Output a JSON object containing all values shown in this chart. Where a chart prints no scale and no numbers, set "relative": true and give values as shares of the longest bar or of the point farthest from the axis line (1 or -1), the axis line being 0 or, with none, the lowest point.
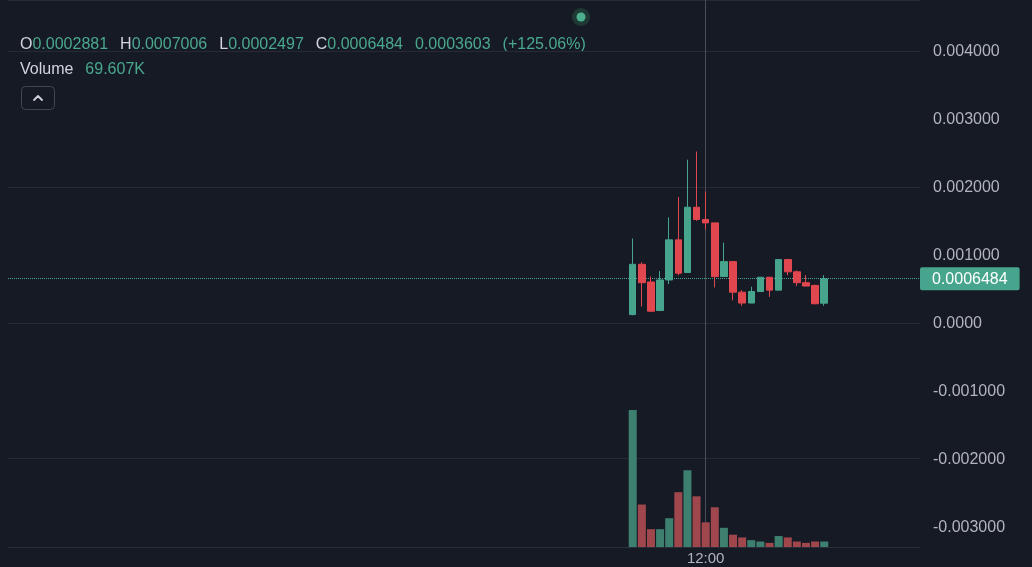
{
  "chart_data": [
    {
      "type": "candlestick",
      "categories": [
        null,
        null,
        null,
        null,
        null,
        null,
        null,
        null,
        null,
        null,
        null,
        null,
        null,
        null,
        null,
        null,
        null,
        null,
        null,
        null,
        null,
        null,
        null,
        null,
        null,
        null,
        null,
        null,
        null,
        null,
        null,
        null,
        null,
        null,
        null,
        null,
        null,
        null,
        null,
        null,
        null,
        null,
        null,
        null,
        null,
        null,
        null,
        null,
        null,
        null,
        null,
        null,
        null,
        null,
        null,
        null,
        null,
        null,
        null,
        null,
        null,
        null,
        null,
        null,
        null,
        null,
        null,
        null,
        null,
        null,
        null,
        null,
        null,
        null,
        null,
        null,
        "12:00",
        null,
        null,
        null,
        null,
        null,
        null,
        null,
        null,
        null,
        null,
        null,
        null,
        null,
        null,
        null,
        null,
        null,
        null,
        null,
        null,
        null,
        null,
        null
      ],
      "ylim": [
        -0.0033,
        0.00475
      ],
      "yticks": [
        {
          "value": -0.003,
          "label": "-0.003000"
        },
        {
          "value": -0.002,
          "label": "-0.002000"
        },
        {
          "value": -0.001,
          "label": "-0.001000"
        },
        {
          "value": 0,
          "label": "0.0000"
        },
        {
          "value": 0.001,
          "label": "0.001000"
        },
        {
          "value": 0.002,
          "label": "0.002000"
        },
        {
          "value": 0.003,
          "label": "0.003000"
        },
        {
          "value": 0.004,
          "label": "0.004000"
        }
      ],
      "ohlc": [
        null,
        null,
        null,
        null,
        null,
        null,
        null,
        null,
        null,
        null,
        null,
        null,
        null,
        null,
        null,
        null,
        null,
        null,
        null,
        null,
        null,
        null,
        null,
        null,
        null,
        null,
        null,
        null,
        null,
        null,
        null,
        null,
        null,
        null,
        null,
        null,
        null,
        null,
        null,
        null,
        null,
        null,
        null,
        null,
        null,
        null,
        null,
        null,
        null,
        null,
        null,
        null,
        null,
        null,
        null,
        null,
        null,
        null,
        null,
        null,
        null,
        null,
        null,
        null,
        null,
        null,
        null,
        null,
        [
          0.00012,
          0.00124,
          0.00011,
          0.00086
        ],
        [
          0.00086,
          0.00089,
          0.00024,
          0.00059
        ],
        [
          0.0006,
          0.00068,
          0.00016,
          0.00017
        ],
        [
          0.00018,
          0.00076,
          0.00018,
          0.00063
        ],
        [
          0.00063,
          0.00155,
          0.00057,
          0.00122
        ],
        [
          0.00122,
          0.00185,
          0.0007,
          0.00073
        ],
        [
          0.00074,
          0.0024,
          0.00074,
          0.0017
        ],
        [
          0.0017,
          0.00252,
          0.0015,
          0.00152
        ],
        [
          0.00152,
          0.00193,
          0.00137,
          0.00147
        ],
        [
          0.00147,
          0.00147,
          0.00052,
          0.00068
        ],
        [
          0.00068,
          0.00118,
          0.00068,
          0.0009
        ],
        [
          0.0009,
          0.00091,
          0.00033,
          0.00045
        ],
        [
          0.00045,
          0.00048,
          0.00025,
          0.00029
        ],
        [
          0.00029,
          0.00053,
          0.00029,
          0.00046
        ],
        [
          0.00046,
          0.00067,
          0.00046,
          0.00067
        ],
        [
          0.00067,
          0.00067,
          0.00038,
          0.00048
        ],
        [
          0.00048,
          0.00093,
          0.00048,
          0.00093
        ],
        [
          0.00093,
          0.00094,
          0.0007,
          0.00075
        ],
        [
          0.00075,
          0.00077,
          0.00054,
          0.00059
        ],
        [
          0.00059,
          0.0007,
          0.00054,
          0.00054
        ],
        [
          0.00055,
          0.00056,
          0.00027,
          0.00028
        ],
        [
          0.0002881,
          0.0007006,
          0.0002497,
          0.0006484
        ],
        null,
        null,
        null,
        null,
        null,
        null,
        null,
        null,
        null,
        null
      ],
      "colors": [
        null,
        null,
        null,
        null,
        null,
        null,
        null,
        null,
        null,
        null,
        null,
        null,
        null,
        null,
        null,
        null,
        null,
        null,
        null,
        null,
        null,
        null,
        null,
        null,
        null,
        null,
        null,
        null,
        null,
        null,
        null,
        null,
        null,
        null,
        null,
        null,
        null,
        null,
        null,
        null,
        null,
        null,
        null,
        null,
        null,
        null,
        null,
        null,
        null,
        null,
        null,
        null,
        null,
        null,
        null,
        null,
        null,
        null,
        null,
        null,
        null,
        null,
        null,
        null,
        null,
        null,
        null,
        null,
        "#46a58c",
        "#e1474f",
        "#e1474f",
        "#46a58c",
        "#46a58c",
        "#e1474f",
        "#46a58c",
        "#e1474f",
        "#e1474f",
        "#e1474f",
        "#46a58c",
        "#e1474f",
        "#e1474f",
        "#46a58c",
        "#46a58c",
        "#e1474f",
        "#46a58c",
        "#e1474f",
        "#e1474f",
        "#e1474f",
        "#e1474f",
        "#46a58c",
        null,
        null,
        null,
        null,
        null,
        null,
        null,
        null,
        null,
        null
      ],
      "grid": "y",
      "ref_lines": [
        {
          "axis": "y",
          "value": 0.0006484,
          "label": "0.0006484",
          "color": "#46a58c",
          "line_style": "dotted"
        },
        {
          "axis": "x",
          "value": "12:00",
          "color": "#4a4e59",
          "line_style": "solid"
        }
      ],
      "annotations": [
        "O0.0002881 H0.0007006 L0.0002497 C0.0006484 0.0003603 (+125.06%)",
        "Volume 69.607K"
      ]
    },
    {
      "type": "bar",
      "relative": true,
      "categories": [
        null,
        null,
        null,
        null,
        null,
        null,
        null,
        null,
        null,
        null,
        null,
        null,
        null,
        null,
        null,
        null,
        null,
        null,
        null,
        null,
        null,
        null,
        null,
        null,
        null,
        null,
        null,
        null,
        null,
        null,
        null,
        null,
        null,
        null,
        null,
        null,
        null,
        null,
        null,
        null,
        null,
        null,
        null,
        null,
        null,
        null,
        null,
        null,
        null,
        null,
        null,
        null,
        null,
        null,
        null,
        null,
        null,
        null,
        null,
        null,
        null,
        null,
        null,
        null,
        null,
        null,
        null,
        null,
        null,
        null,
        null,
        null,
        null,
        null,
        null,
        null,
        null,
        null,
        null,
        null,
        null,
        null,
        null,
        null,
        null,
        null,
        null,
        null,
        null,
        null,
        null,
        null,
        null,
        null,
        null,
        null,
        null,
        null,
        null,
        null
      ],
      "values": [
        null,
        null,
        null,
        null,
        null,
        null,
        null,
        null,
        null,
        null,
        null,
        null,
        null,
        null,
        null,
        null,
        null,
        null,
        null,
        null,
        null,
        null,
        null,
        null,
        null,
        null,
        null,
        null,
        null,
        null,
        null,
        null,
        null,
        null,
        null,
        null,
        null,
        null,
        null,
        null,
        null,
        null,
        null,
        null,
        null,
        null,
        null,
        null,
        null,
        null,
        null,
        null,
        null,
        null,
        null,
        null,
        null,
        null,
        null,
        null,
        null,
        null,
        null,
        null,
        null,
        null,
        null,
        null,
        1,
        0.31,
        0.13,
        0.13,
        0.21,
        0.4,
        0.56,
        0.37,
        0.18,
        0.29,
        0.14,
        0.09,
        0.07,
        0.05,
        0.04,
        0.03,
        0.08,
        0.07,
        0.04,
        0.03,
        0.04,
        0.04,
        null,
        null,
        null,
        null,
        null,
        null,
        null,
        null,
        null,
        null
      ],
      "colors": [
        null,
        null,
        null,
        null,
        null,
        null,
        null,
        null,
        null,
        null,
        null,
        null,
        null,
        null,
        null,
        null,
        null,
        null,
        null,
        null,
        null,
        null,
        null,
        null,
        null,
        null,
        null,
        null,
        null,
        null,
        null,
        null,
        null,
        null,
        null,
        null,
        null,
        null,
        null,
        null,
        null,
        null,
        null,
        null,
        null,
        null,
        null,
        null,
        null,
        null,
        null,
        null,
        null,
        null,
        null,
        null,
        null,
        null,
        null,
        null,
        null,
        null,
        null,
        null,
        null,
        null,
        null,
        null,
        "#3d8070",
        "#9f474c",
        "#9f474c",
        "#3d8070",
        "#3d8070",
        "#9f474c",
        "#3d8070",
        "#9f474c",
        "#9f474c",
        "#9f474c",
        "#3d8070",
        "#9f474c",
        "#9f474c",
        "#3d8070",
        "#3d8070",
        "#9f474c",
        "#3d8070",
        "#9f474c",
        "#9f474c",
        "#9f474c",
        "#9f474c",
        "#3d8070",
        null,
        null,
        null,
        null,
        null,
        null,
        null,
        null,
        null,
        null
      ]
    }
  ]
}
